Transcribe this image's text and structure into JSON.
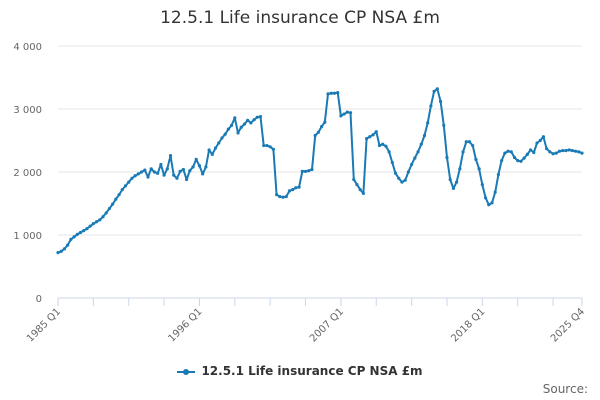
{
  "title": "12.5.1 Life insurance CP NSA £m",
  "source_label": "Source:",
  "colors": {
    "series": "#1a7ab5",
    "grid": "#e6e6e6",
    "axis": "#ccd6eb"
  },
  "chart_data": {
    "type": "line",
    "title": "12.5.1 Life insurance CP NSA £m",
    "xlabel": "",
    "ylabel": "",
    "ylim": [
      0,
      4000
    ],
    "yticks": [
      0,
      1000,
      2000,
      3000,
      4000
    ],
    "ytick_labels": [
      "0",
      "1 000",
      "2 000",
      "3 000",
      "4 000"
    ],
    "x_start": "1985 Q1",
    "x_end": "2025 Q4",
    "xtick_labels": [
      {
        "label": "1985 Q1",
        "index": 0
      },
      {
        "label": "1996 Q1",
        "index": 44
      },
      {
        "label": "2007 Q1",
        "index": 88
      },
      {
        "label": "2018 Q1",
        "index": 132
      },
      {
        "label": "2025 Q4",
        "index": 163
      }
    ],
    "legend": "bottom-center",
    "grid": true,
    "series": [
      {
        "name": "12.5.1 Life insurance CP NSA £m",
        "values": [
          720,
          740,
          780,
          840,
          930,
          970,
          1010,
          1040,
          1070,
          1100,
          1140,
          1180,
          1210,
          1240,
          1290,
          1350,
          1420,
          1490,
          1570,
          1640,
          1720,
          1780,
          1840,
          1900,
          1940,
          1970,
          2000,
          2030,
          1920,
          2050,
          2000,
          1980,
          2120,
          1950,
          2050,
          2260,
          1950,
          1900,
          2010,
          2040,
          1880,
          2020,
          2080,
          2200,
          2100,
          1970,
          2080,
          2350,
          2280,
          2380,
          2460,
          2540,
          2600,
          2680,
          2740,
          2860,
          2620,
          2710,
          2760,
          2820,
          2780,
          2830,
          2870,
          2880,
          2420,
          2420,
          2400,
          2360,
          1640,
          1610,
          1600,
          1610,
          1700,
          1720,
          1750,
          1760,
          2010,
          2010,
          2020,
          2040,
          2580,
          2630,
          2720,
          2790,
          3240,
          3250,
          3250,
          3260,
          2890,
          2920,
          2950,
          2940,
          1880,
          1800,
          1720,
          1660,
          2530,
          2560,
          2590,
          2640,
          2420,
          2440,
          2410,
          2320,
          2150,
          1980,
          1900,
          1840,
          1870,
          2000,
          2120,
          2220,
          2320,
          2440,
          2580,
          2780,
          3050,
          3280,
          3320,
          3120,
          2740,
          2230,
          1880,
          1740,
          1840,
          2050,
          2320,
          2480,
          2480,
          2420,
          2200,
          2050,
          1800,
          1590,
          1480,
          1510,
          1680,
          1960,
          2180,
          2300,
          2330,
          2320,
          2230,
          2180,
          2170,
          2220,
          2280,
          2350,
          2310,
          2460,
          2500,
          2560,
          2370,
          2320,
          2290,
          2300,
          2330,
          2340,
          2340,
          2350,
          2340,
          2330,
          2320,
          2300
        ]
      }
    ]
  }
}
